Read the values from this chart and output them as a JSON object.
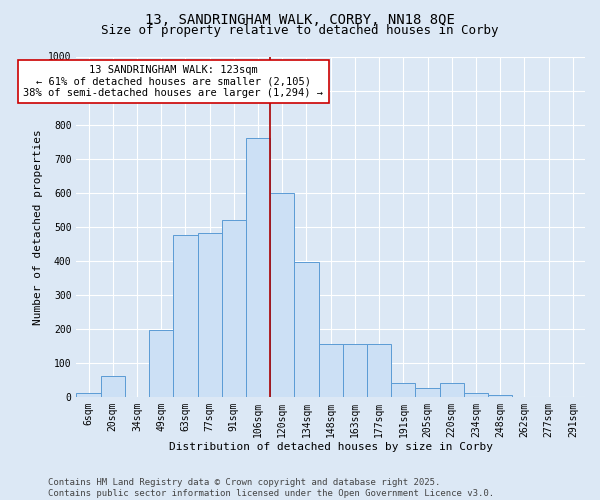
{
  "title": "13, SANDRINGHAM WALK, CORBY, NN18 8QE",
  "subtitle": "Size of property relative to detached houses in Corby",
  "xlabel": "Distribution of detached houses by size in Corby",
  "ylabel": "Number of detached properties",
  "categories": [
    "6sqm",
    "20sqm",
    "34sqm",
    "49sqm",
    "63sqm",
    "77sqm",
    "91sqm",
    "106sqm",
    "120sqm",
    "134sqm",
    "148sqm",
    "163sqm",
    "177sqm",
    "191sqm",
    "205sqm",
    "220sqm",
    "234sqm",
    "248sqm",
    "262sqm",
    "277sqm",
    "291sqm"
  ],
  "values": [
    10,
    60,
    0,
    195,
    475,
    480,
    520,
    760,
    600,
    395,
    155,
    155,
    155,
    40,
    25,
    40,
    10,
    5,
    0,
    0,
    0
  ],
  "bar_color": "#cce0f5",
  "bar_edge_color": "#5b9bd5",
  "vline_color": "#aa0000",
  "annotation_text": "13 SANDRINGHAM WALK: 123sqm\n← 61% of detached houses are smaller (2,105)\n38% of semi-detached houses are larger (1,294) →",
  "annotation_box_color": "#ffffff",
  "annotation_box_edge": "#cc0000",
  "ylim": [
    0,
    1000
  ],
  "yticks": [
    0,
    100,
    200,
    300,
    400,
    500,
    600,
    700,
    800,
    900,
    1000
  ],
  "bg_color": "#dce8f5",
  "plot_bg_color": "#dce8f5",
  "footer": "Contains HM Land Registry data © Crown copyright and database right 2025.\nContains public sector information licensed under the Open Government Licence v3.0.",
  "title_fontsize": 10,
  "subtitle_fontsize": 9,
  "axis_fontsize": 8,
  "tick_fontsize": 7,
  "footer_fontsize": 6.5,
  "annot_fontsize": 7.5
}
